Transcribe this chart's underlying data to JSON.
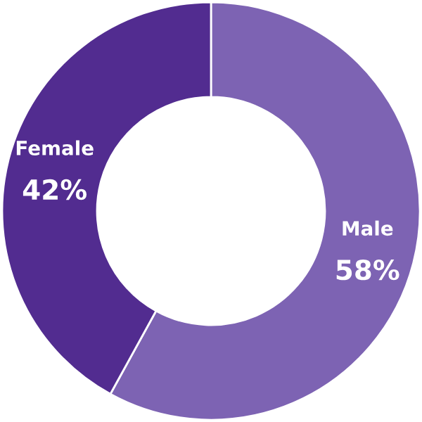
{
  "chart_data": {
    "type": "donut",
    "categories": [
      "Male",
      "Female"
    ],
    "values": [
      58,
      42
    ],
    "colors": [
      "#7d63b3",
      "#522c90"
    ],
    "value_labels": [
      "58%",
      "42%"
    ],
    "legend": false
  }
}
